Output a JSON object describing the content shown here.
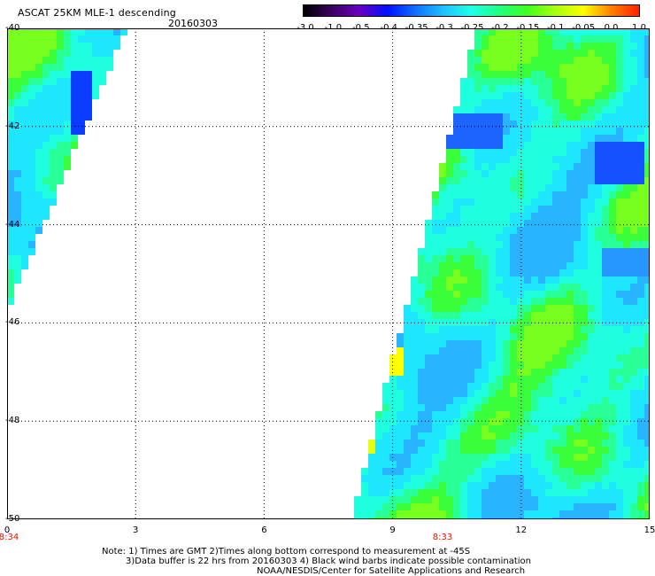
{
  "title": "ASCAT 25KM MLE-1 descending",
  "date": "20160303",
  "colorbar": {
    "labels": [
      "-3.0",
      "-1.0",
      "-0.5",
      "-0.4",
      "-0.35",
      "-0.3",
      "-0.25",
      "-0.2",
      "-0.15",
      "-0.1",
      "-0.05",
      "0.0",
      "1.0"
    ],
    "colors": [
      "#000000",
      "#3a0060",
      "#6a00c0",
      "#0010ff",
      "#1070ff",
      "#20c0ff",
      "#20ffe8",
      "#20ff80",
      "#40ff20",
      "#a8ff10",
      "#ffff00",
      "#ff8000",
      "#ff2000"
    ]
  },
  "axes": {
    "lat_labels": [
      "-40",
      "-42",
      "-44",
      "-46",
      "-48",
      "-50"
    ],
    "lon_labels": [
      "0",
      "3",
      "6",
      "9",
      "12",
      "15"
    ],
    "time_left": "8:34",
    "time_right": "8:33"
  },
  "notes": {
    "line1": "Note: 1) Times are GMT 2)Times along bottom correspond to measurement at -45S",
    "line2": "3)Data buffer is 22 hrs from 20160303 4) Black wind barbs indicate possible contamination",
    "line3": "NOAA/NESDIS/Center for Satellite Applications and Research"
  }
}
